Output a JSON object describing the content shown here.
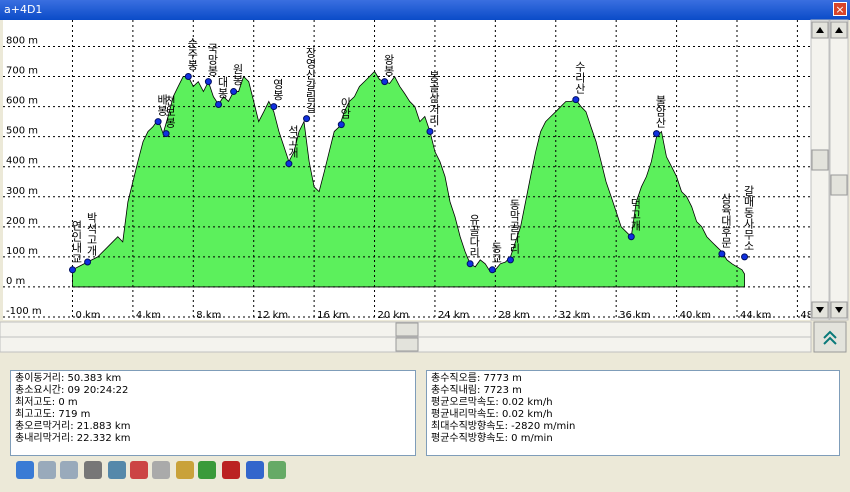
{
  "window": {
    "title": "a+4D1"
  },
  "chart_data": {
    "type": "area",
    "color": "#5cf05c",
    "grid": true,
    "x": [
      0,
      1,
      1.67,
      2.33,
      3,
      3.33,
      3.67,
      4,
      4.33,
      4.67,
      5,
      5.33,
      5.67,
      6,
      6.33,
      6.67,
      7,
      7.33,
      7.67,
      8,
      8.33,
      8.67,
      9,
      9.33,
      9.67,
      10,
      10.33,
      10.67,
      11,
      11.33,
      11.67,
      12,
      12.33,
      12.67,
      13,
      13.33,
      13.67,
      14,
      14.33,
      14.67,
      15,
      15.33,
      15.67,
      16,
      16.33,
      16.67,
      17,
      17.33,
      17.67,
      18,
      18.33,
      18.67,
      19,
      19.33,
      19.67,
      20,
      20.33,
      20.67,
      21,
      21.33,
      21.67,
      22,
      22.33,
      22.67,
      23,
      23.33,
      23.67,
      24,
      24.33,
      24.67,
      25,
      25.33,
      25.67,
      26,
      26.33,
      26.67,
      27,
      27.33,
      27.67,
      28,
      28.33,
      28.67,
      29,
      29.33,
      29.67,
      30,
      30.33,
      30.67,
      31,
      31.33,
      31.67,
      32,
      32.33,
      32.67,
      33,
      33.33,
      33.67,
      34,
      34.33,
      34.67,
      35,
      35.33,
      35.67,
      36,
      36.33,
      36.67,
      37,
      37.33,
      37.67,
      38,
      38.33,
      38.67,
      39,
      39.33,
      39.67,
      40,
      40.33,
      40.67,
      41,
      41.33,
      41.67,
      42,
      42.33,
      42.67,
      43,
      43.33,
      43.67,
      44,
      44.33,
      44.5
    ],
    "values": [
      57,
      83,
      100,
      133,
      167,
      150,
      283,
      350,
      417,
      483,
      517,
      533,
      557,
      510,
      567,
      633,
      667,
      700,
      700,
      667,
      683,
      650,
      683,
      633,
      607,
      633,
      617,
      650,
      650,
      700,
      683,
      617,
      550,
      583,
      617,
      583,
      517,
      467,
      417,
      450,
      517,
      550,
      417,
      333,
      317,
      383,
      450,
      517,
      533,
      583,
      617,
      633,
      667,
      683,
      700,
      717,
      690,
      683,
      677,
      700,
      667,
      643,
      617,
      600,
      550,
      567,
      517,
      450,
      417,
      367,
      283,
      233,
      167,
      117,
      77,
      67,
      90,
      77,
      50,
      57,
      77,
      83,
      100,
      150,
      200,
      283,
      367,
      450,
      517,
      550,
      567,
      583,
      600,
      617,
      617,
      623,
      600,
      583,
      533,
      483,
      417,
      350,
      300,
      250,
      200,
      183,
      167,
      283,
      333,
      367,
      417,
      500,
      517,
      433,
      400,
      367,
      317,
      300,
      267,
      217,
      200,
      167,
      150,
      133,
      117,
      90,
      77,
      67,
      57,
      43
    ],
    "waypoints": [
      {
        "x": 0,
        "y": 57,
        "label": "연인내교"
      },
      {
        "x": 1,
        "y": 83,
        "label": "박석고개"
      },
      {
        "x": 5.67,
        "y": 550,
        "label": "배봉"
      },
      {
        "x": 6.2,
        "y": 510,
        "label": "천보봉"
      },
      {
        "x": 7.67,
        "y": 700,
        "label": "순주봉"
      },
      {
        "x": 9,
        "y": 683,
        "label": "국망봉"
      },
      {
        "x": 9.67,
        "y": 607,
        "label": "대봉"
      },
      {
        "x": 10.67,
        "y": 650,
        "label": "원봉"
      },
      {
        "x": 13.33,
        "y": 600,
        "label": "영봉"
      },
      {
        "x": 14.33,
        "y": 410,
        "label": "석고개"
      },
      {
        "x": 15.5,
        "y": 560,
        "label": "장영산갈림길"
      },
      {
        "x": 17.8,
        "y": 540,
        "label": "이암"
      },
      {
        "x": 20.67,
        "y": 683,
        "label": "왕봉"
      },
      {
        "x": 23.67,
        "y": 517,
        "label": "봉골삼거리"
      },
      {
        "x": 26.33,
        "y": 77,
        "label": "유골다리"
      },
      {
        "x": 27.8,
        "y": 57,
        "label": "동교"
      },
      {
        "x": 29,
        "y": 90,
        "label": "동막골다리"
      },
      {
        "x": 33.33,
        "y": 623,
        "label": "수리산"
      },
      {
        "x": 37,
        "y": 167,
        "label": "덕고개"
      },
      {
        "x": 38.67,
        "y": 510,
        "label": "불암산"
      },
      {
        "x": 43,
        "y": 110,
        "label": "삼육대후문"
      },
      {
        "x": 44.5,
        "y": 100,
        "label": "갈매동사무소"
      }
    ],
    "xlim": [
      -4.6,
      48.9
    ],
    "ylim": [
      -110,
      888
    ],
    "xticks": [
      {
        "value": 0,
        "label": "0 km"
      },
      {
        "value": 4,
        "label": "4 km"
      },
      {
        "value": 8,
        "label": "8 km"
      },
      {
        "value": 12,
        "label": "12 km"
      },
      {
        "value": 16,
        "label": "16 km"
      },
      {
        "value": 20,
        "label": "20 km"
      },
      {
        "value": 24,
        "label": "24 km"
      },
      {
        "value": 28,
        "label": "28 km"
      },
      {
        "value": 32,
        "label": "32 km"
      },
      {
        "value": 36,
        "label": "36 km"
      },
      {
        "value": 40,
        "label": "40 km"
      },
      {
        "value": 44,
        "label": "44 km"
      },
      {
        "value": 48,
        "label": "48 km"
      }
    ],
    "yticks": [
      {
        "value": -100,
        "label": "-100 m"
      },
      {
        "value": 0,
        "label": "0 m"
      },
      {
        "value": 100,
        "label": "100 m"
      },
      {
        "value": 200,
        "label": "200 m"
      },
      {
        "value": 300,
        "label": "300 m"
      },
      {
        "value": 400,
        "label": "400 m"
      },
      {
        "value": 500,
        "label": "500 m"
      },
      {
        "value": 600,
        "label": "600 m"
      },
      {
        "value": 700,
        "label": "700 m"
      },
      {
        "value": 800,
        "label": "800 m"
      }
    ]
  },
  "stats": {
    "left": [
      "총이동거리: 50.383 km",
      "총소요시간: 09 20:24:22",
      "최저고도: 0 m",
      "최고고도: 719 m",
      "총오르막거리: 21.883 km",
      "총내리막거리: 22.332 km"
    ],
    "right": [
      "총수직오름: 7773 m",
      "총수직내림: 7723 m",
      "평균오르막속도: 0.02 km/h",
      "평균내리막속도: 0.02 km/h",
      "최대수직방향속도: -2820 m/min",
      "평균수직방향속도: 0 m/min"
    ]
  }
}
